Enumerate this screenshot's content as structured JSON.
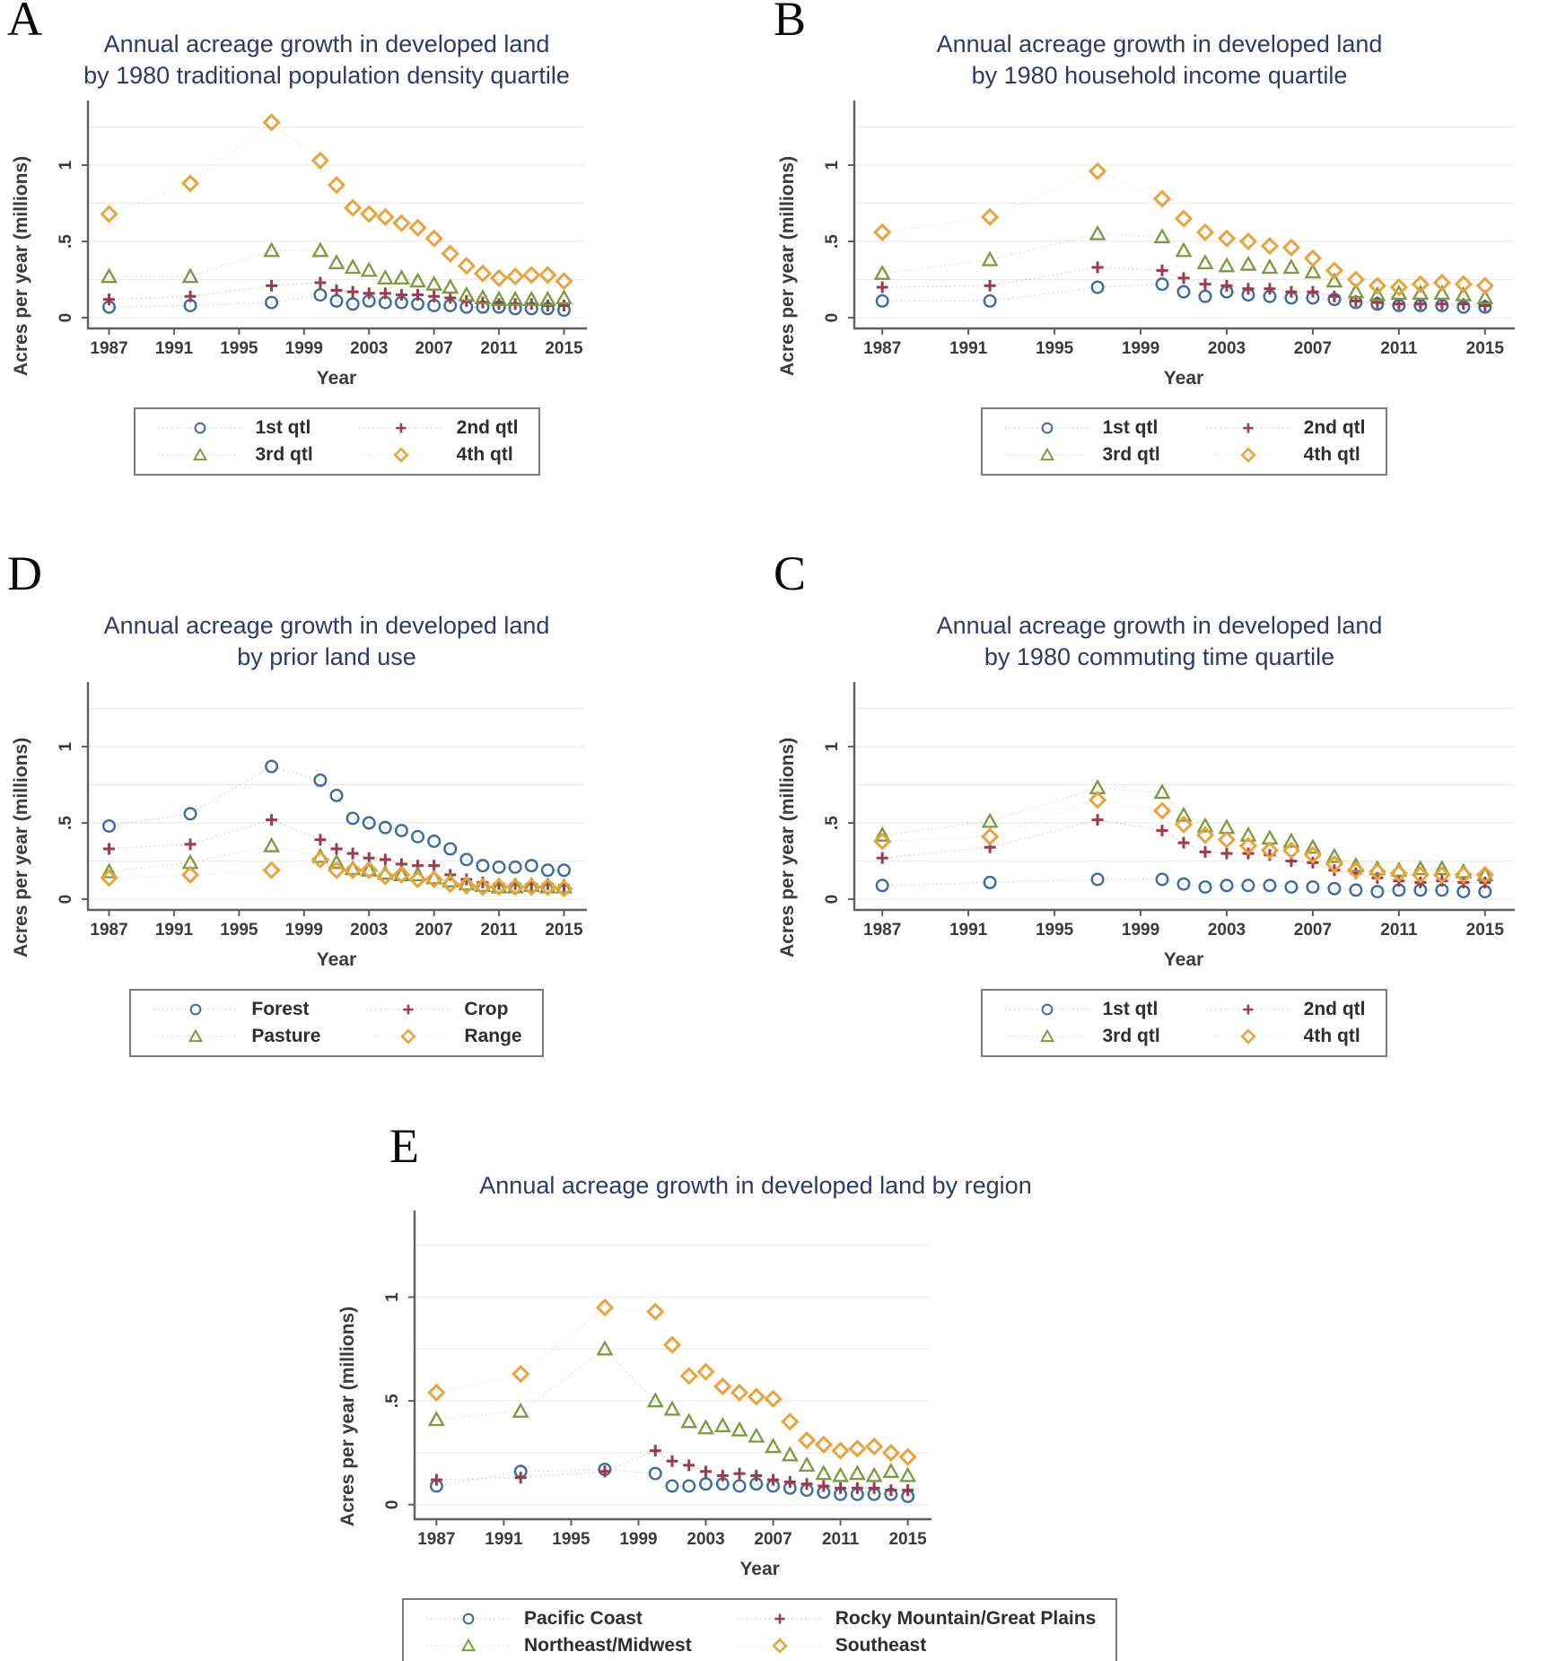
{
  "figure": {
    "background": "#ffffff",
    "title_color": "#2b3a67",
    "axis_color": "#5f5f5f",
    "grid_color": "#ebebeb",
    "text_color": "#3b3b3b"
  },
  "chart_data": [
    {
      "panel": "A",
      "type": "scatter",
      "title_line1": "Annual acreage growth in developed land",
      "title_line2": "by 1980 traditional population density quartile",
      "xlabel": "Year",
      "ylabel": "Acres per year (millions)",
      "x": [
        1987,
        1992,
        1997,
        2000,
        2001,
        2002,
        2003,
        2004,
        2005,
        2006,
        2007,
        2008,
        2009,
        2010,
        2011,
        2012,
        2013,
        2014,
        2015
      ],
      "xticks": [
        1987,
        1991,
        1995,
        1999,
        2003,
        2007,
        2011,
        2015
      ],
      "yticks": [
        0,
        0.5,
        1
      ],
      "ytick_labels": [
        "0",
        ".5",
        "1"
      ],
      "xlim": [
        1985.7,
        2016.3
      ],
      "ylim": [
        -0.07,
        1.4
      ],
      "grid": "horizontal every 0.25, light gray",
      "legend_position": "below",
      "series": [
        {
          "name": "1st qtl",
          "marker": "circle",
          "color": "#3e6d9c",
          "values": [
            0.07,
            0.08,
            0.1,
            0.15,
            0.11,
            0.09,
            0.11,
            0.1,
            0.1,
            0.09,
            0.08,
            0.08,
            0.07,
            0.07,
            0.07,
            0.06,
            0.06,
            0.06,
            0.05
          ]
        },
        {
          "name": "2nd qtl",
          "marker": "plus",
          "color": "#9d3a4c",
          "values": [
            0.12,
            0.14,
            0.21,
            0.23,
            0.18,
            0.17,
            0.16,
            0.16,
            0.15,
            0.15,
            0.14,
            0.13,
            0.11,
            0.1,
            0.09,
            0.09,
            0.09,
            0.08,
            0.08
          ]
        },
        {
          "name": "3rd qtl",
          "marker": "triangle",
          "color": "#7a9a3e",
          "values": [
            0.27,
            0.27,
            0.44,
            0.44,
            0.36,
            0.33,
            0.31,
            0.26,
            0.26,
            0.24,
            0.22,
            0.2,
            0.15,
            0.13,
            0.12,
            0.12,
            0.12,
            0.12,
            0.13
          ]
        },
        {
          "name": "4th qtl",
          "marker": "diamond",
          "color": "#e8a33c",
          "values": [
            0.68,
            0.88,
            1.28,
            1.03,
            0.87,
            0.72,
            0.68,
            0.66,
            0.62,
            0.59,
            0.52,
            0.42,
            0.34,
            0.29,
            0.26,
            0.27,
            0.28,
            0.28,
            0.24
          ]
        }
      ]
    },
    {
      "panel": "B",
      "type": "scatter",
      "title_line1": "Annual acreage growth in developed land",
      "title_line2": "by 1980 household income quartile",
      "xlabel": "Year",
      "ylabel": "Acres per year (millions)",
      "x": [
        1987,
        1992,
        1997,
        2000,
        2001,
        2002,
        2003,
        2004,
        2005,
        2006,
        2007,
        2008,
        2009,
        2010,
        2011,
        2012,
        2013,
        2014,
        2015
      ],
      "xticks": [
        1987,
        1991,
        1995,
        1999,
        2003,
        2007,
        2011,
        2015
      ],
      "yticks": [
        0,
        0.5,
        1
      ],
      "ytick_labels": [
        "0",
        ".5",
        "1"
      ],
      "xlim": [
        1985.7,
        2016.3
      ],
      "ylim": [
        -0.07,
        1.4
      ],
      "grid": "horizontal every 0.25, light gray",
      "legend_position": "below",
      "series": [
        {
          "name": "1st qtl",
          "marker": "circle",
          "color": "#3e6d9c",
          "values": [
            0.11,
            0.11,
            0.2,
            0.22,
            0.17,
            0.14,
            0.17,
            0.15,
            0.14,
            0.13,
            0.13,
            0.12,
            0.1,
            0.09,
            0.08,
            0.08,
            0.08,
            0.07,
            0.07
          ]
        },
        {
          "name": "2nd qtl",
          "marker": "plus",
          "color": "#9d3a4c",
          "values": [
            0.2,
            0.21,
            0.33,
            0.31,
            0.26,
            0.22,
            0.21,
            0.19,
            0.19,
            0.17,
            0.17,
            0.14,
            0.11,
            0.1,
            0.09,
            0.09,
            0.09,
            0.09,
            0.08
          ]
        },
        {
          "name": "3rd qtl",
          "marker": "triangle",
          "color": "#7a9a3e",
          "values": [
            0.29,
            0.38,
            0.55,
            0.53,
            0.44,
            0.36,
            0.34,
            0.35,
            0.33,
            0.33,
            0.3,
            0.24,
            0.17,
            0.15,
            0.16,
            0.16,
            0.16,
            0.15,
            0.13
          ]
        },
        {
          "name": "4th qtl",
          "marker": "diamond",
          "color": "#e8a33c",
          "values": [
            0.56,
            0.66,
            0.96,
            0.78,
            0.65,
            0.56,
            0.52,
            0.5,
            0.47,
            0.46,
            0.39,
            0.31,
            0.25,
            0.21,
            0.2,
            0.22,
            0.23,
            0.22,
            0.21
          ]
        }
      ]
    },
    {
      "panel": "D",
      "type": "scatter",
      "title_line1": "Annual acreage growth in developed land",
      "title_line2": "by prior land use",
      "xlabel": "Year",
      "ylabel": "Acres per year (millions)",
      "x": [
        1987,
        1992,
        1997,
        2000,
        2001,
        2002,
        2003,
        2004,
        2005,
        2006,
        2007,
        2008,
        2009,
        2010,
        2011,
        2012,
        2013,
        2014,
        2015
      ],
      "xticks": [
        1987,
        1991,
        1995,
        1999,
        2003,
        2007,
        2011,
        2015
      ],
      "yticks": [
        0,
        0.5,
        1
      ],
      "ytick_labels": [
        "0",
        ".5",
        "1"
      ],
      "xlim": [
        1985.7,
        2016.3
      ],
      "ylim": [
        -0.07,
        1.4
      ],
      "grid": "horizontal every 0.25, light gray",
      "legend_position": "below",
      "series": [
        {
          "name": "Forest",
          "marker": "circle",
          "color": "#3e6d9c",
          "values": [
            0.48,
            0.56,
            0.87,
            0.78,
            0.68,
            0.53,
            0.5,
            0.47,
            0.45,
            0.41,
            0.38,
            0.33,
            0.26,
            0.22,
            0.21,
            0.21,
            0.22,
            0.19,
            0.19
          ]
        },
        {
          "name": "Crop",
          "marker": "plus",
          "color": "#9d3a4c",
          "values": [
            0.33,
            0.36,
            0.52,
            0.39,
            0.33,
            0.3,
            0.27,
            0.26,
            0.23,
            0.22,
            0.22,
            0.16,
            0.13,
            0.11,
            0.1,
            0.1,
            0.1,
            0.1,
            0.09
          ]
        },
        {
          "name": "Pasture",
          "marker": "triangle",
          "color": "#7a9a3e",
          "values": [
            0.18,
            0.24,
            0.35,
            0.28,
            0.24,
            0.2,
            0.19,
            0.17,
            0.16,
            0.16,
            0.14,
            0.12,
            0.1,
            0.09,
            0.08,
            0.08,
            0.09,
            0.08,
            0.08
          ]
        },
        {
          "name": "Range",
          "marker": "diamond",
          "color": "#e8a33c",
          "values": [
            0.14,
            0.16,
            0.19,
            0.26,
            0.19,
            0.19,
            0.19,
            0.15,
            0.16,
            0.13,
            0.13,
            0.1,
            0.09,
            0.08,
            0.08,
            0.08,
            0.08,
            0.08,
            0.07
          ]
        }
      ]
    },
    {
      "panel": "C",
      "type": "scatter",
      "title_line1": "Annual acreage growth in developed land",
      "title_line2": "by 1980 commuting time quartile",
      "xlabel": "Year",
      "ylabel": "Acres per year (millions)",
      "x": [
        1987,
        1992,
        1997,
        2000,
        2001,
        2002,
        2003,
        2004,
        2005,
        2006,
        2007,
        2008,
        2009,
        2010,
        2011,
        2012,
        2013,
        2014,
        2015
      ],
      "xticks": [
        1987,
        1991,
        1995,
        1999,
        2003,
        2007,
        2011,
        2015
      ],
      "yticks": [
        0,
        0.5,
        1
      ],
      "ytick_labels": [
        "0",
        ".5",
        "1"
      ],
      "xlim": [
        1985.7,
        2016.3
      ],
      "ylim": [
        -0.07,
        1.4
      ],
      "grid": "horizontal every 0.25, light gray",
      "legend_position": "below",
      "series": [
        {
          "name": "1st qtl",
          "marker": "circle",
          "color": "#3e6d9c",
          "values": [
            0.09,
            0.11,
            0.13,
            0.13,
            0.1,
            0.08,
            0.09,
            0.09,
            0.09,
            0.08,
            0.08,
            0.07,
            0.06,
            0.05,
            0.06,
            0.06,
            0.06,
            0.05,
            0.05
          ]
        },
        {
          "name": "2nd qtl",
          "marker": "plus",
          "color": "#9d3a4c",
          "values": [
            0.27,
            0.34,
            0.52,
            0.45,
            0.37,
            0.31,
            0.3,
            0.3,
            0.29,
            0.25,
            0.24,
            0.19,
            0.17,
            0.14,
            0.12,
            0.11,
            0.12,
            0.11,
            0.11
          ]
        },
        {
          "name": "3rd qtl",
          "marker": "triangle",
          "color": "#7a9a3e",
          "values": [
            0.42,
            0.51,
            0.73,
            0.7,
            0.55,
            0.48,
            0.47,
            0.42,
            0.4,
            0.38,
            0.34,
            0.28,
            0.22,
            0.2,
            0.19,
            0.2,
            0.2,
            0.18,
            0.16
          ]
        },
        {
          "name": "4th qtl",
          "marker": "diamond",
          "color": "#e8a33c",
          "values": [
            0.38,
            0.41,
            0.65,
            0.58,
            0.49,
            0.42,
            0.39,
            0.35,
            0.32,
            0.32,
            0.29,
            0.23,
            0.19,
            0.18,
            0.17,
            0.16,
            0.16,
            0.16,
            0.16
          ]
        }
      ]
    },
    {
      "panel": "E",
      "type": "scatter",
      "title_line1": "Annual acreage growth in developed land by region",
      "title_line2": "",
      "xlabel": "Year",
      "ylabel": "Acres per year (millions)",
      "x": [
        1987,
        1992,
        1997,
        2000,
        2001,
        2002,
        2003,
        2004,
        2005,
        2006,
        2007,
        2008,
        2009,
        2010,
        2011,
        2012,
        2013,
        2014,
        2015
      ],
      "xticks": [
        1987,
        1991,
        1995,
        1999,
        2003,
        2007,
        2011,
        2015
      ],
      "yticks": [
        0,
        0.5,
        1
      ],
      "ytick_labels": [
        "0",
        ".5",
        "1"
      ],
      "xlim": [
        1985.7,
        2016.3
      ],
      "ylim": [
        -0.07,
        1.4
      ],
      "grid": "horizontal every 0.25, light gray",
      "legend_position": "below",
      "series": [
        {
          "name": "Pacific Coast",
          "marker": "circle",
          "color": "#3e6d9c",
          "values": [
            0.09,
            0.16,
            0.17,
            0.15,
            0.09,
            0.09,
            0.1,
            0.1,
            0.09,
            0.1,
            0.09,
            0.08,
            0.07,
            0.06,
            0.05,
            0.05,
            0.05,
            0.05,
            0.04
          ]
        },
        {
          "name": "Rocky Mountain/Great Plains",
          "marker": "plus",
          "color": "#9d3a4c",
          "values": [
            0.12,
            0.13,
            0.16,
            0.26,
            0.21,
            0.19,
            0.16,
            0.14,
            0.15,
            0.14,
            0.12,
            0.11,
            0.1,
            0.09,
            0.08,
            0.08,
            0.08,
            0.07,
            0.07
          ]
        },
        {
          "name": "Northeast/Midwest",
          "marker": "triangle",
          "color": "#7a9a3e",
          "values": [
            0.41,
            0.45,
            0.75,
            0.5,
            0.46,
            0.4,
            0.37,
            0.38,
            0.36,
            0.33,
            0.28,
            0.24,
            0.19,
            0.15,
            0.14,
            0.15,
            0.14,
            0.16,
            0.14
          ]
        },
        {
          "name": "Southeast",
          "marker": "diamond",
          "color": "#e8a33c",
          "values": [
            0.54,
            0.63,
            0.95,
            0.93,
            0.77,
            0.62,
            0.64,
            0.57,
            0.54,
            0.52,
            0.51,
            0.4,
            0.31,
            0.29,
            0.26,
            0.27,
            0.28,
            0.25,
            0.23
          ]
        }
      ]
    }
  ]
}
